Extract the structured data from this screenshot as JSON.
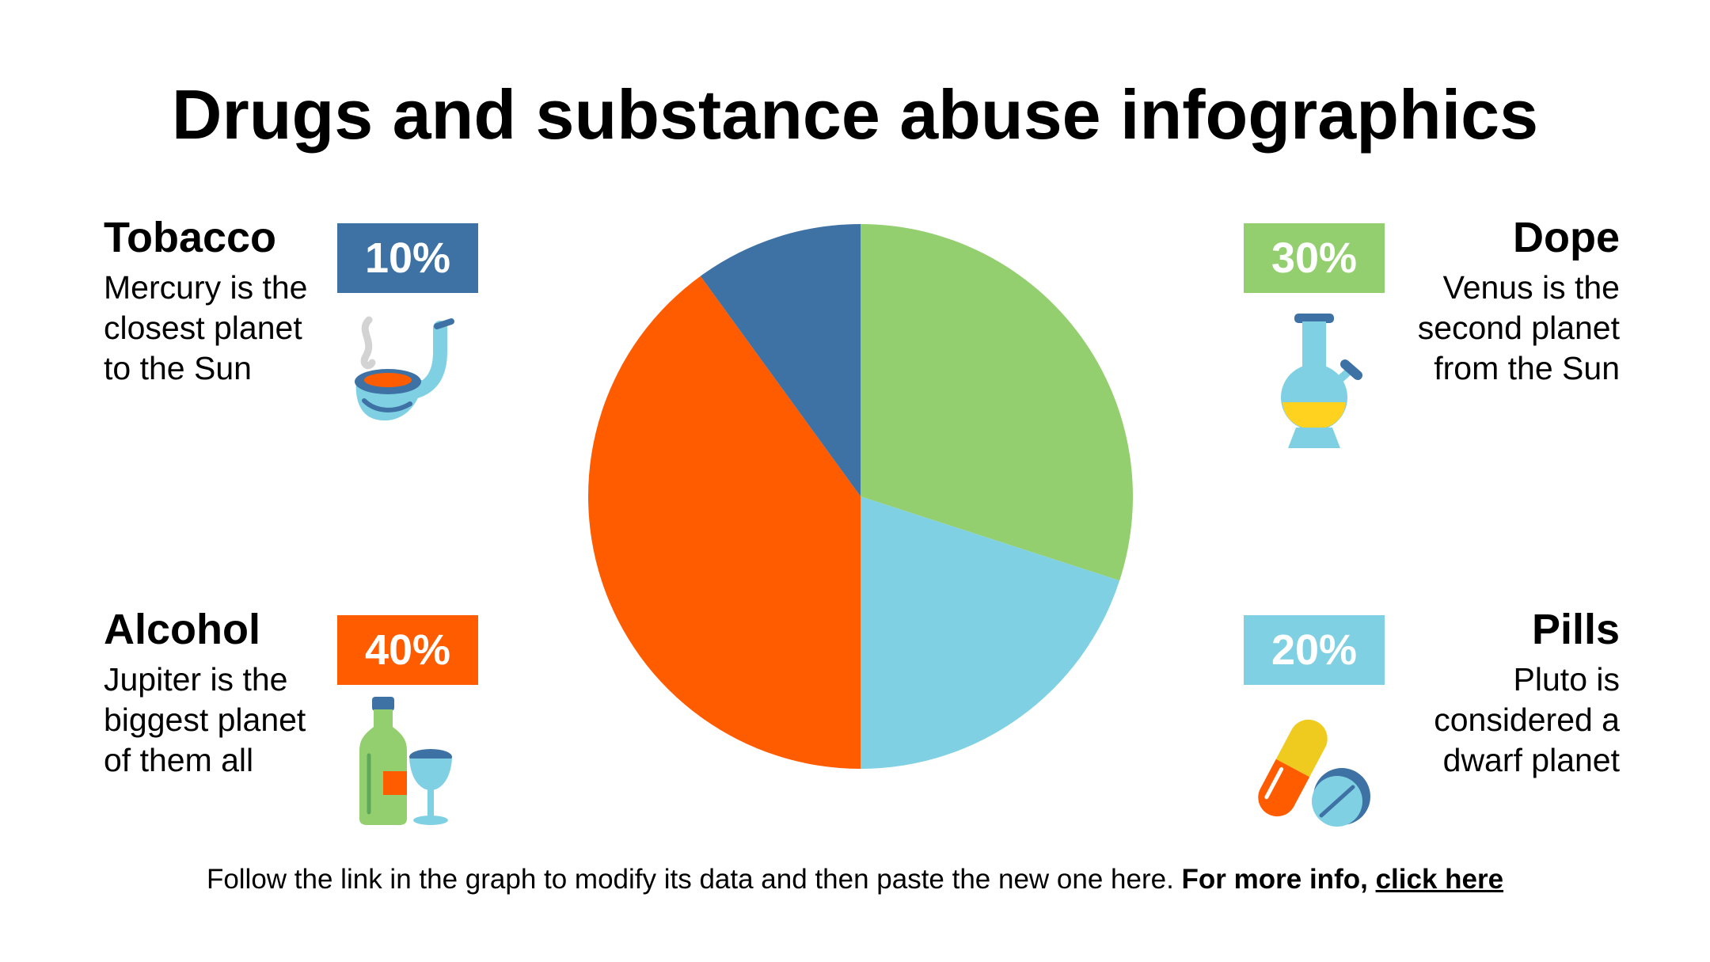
{
  "title": "Drugs and substance abuse infographics",
  "colors": {
    "tobacco": "#3e72a4",
    "dope": "#93cf6f",
    "pills": "#80d0e3",
    "alcohol": "#ff5c00"
  },
  "items": {
    "tobacco": {
      "name": "Tobacco",
      "percent": "10%",
      "desc": [
        "Mercury is the",
        "closest planet",
        "to the Sun"
      ],
      "icon": "pipe-icon"
    },
    "alcohol": {
      "name": "Alcohol",
      "percent": "40%",
      "desc": [
        "Jupiter is the",
        "biggest planet",
        "of them all"
      ],
      "icon": "bottle-and-glass-icon"
    },
    "dope": {
      "name": "Dope",
      "percent": "30%",
      "desc": [
        "Venus is the",
        "second planet",
        "from the Sun"
      ],
      "icon": "bong-icon"
    },
    "pills": {
      "name": "Pills",
      "percent": "20%",
      "desc": [
        "Pluto is",
        "considered a",
        "dwarf planet"
      ],
      "icon": "pills-icon"
    }
  },
  "chart_data": {
    "type": "pie",
    "labels": [
      "Dope",
      "Pills",
      "Alcohol",
      "Tobacco"
    ],
    "values": [
      30,
      20,
      40,
      10
    ],
    "colors": [
      "#93cf6f",
      "#80d0e3",
      "#ff5c00",
      "#3e72a4"
    ],
    "start": "12 o'clock",
    "direction": "clockwise"
  },
  "footer": {
    "text": "Follow the link in the graph to modify its data and then paste the new one here.",
    "bold": "For more info,",
    "link": "click here"
  }
}
